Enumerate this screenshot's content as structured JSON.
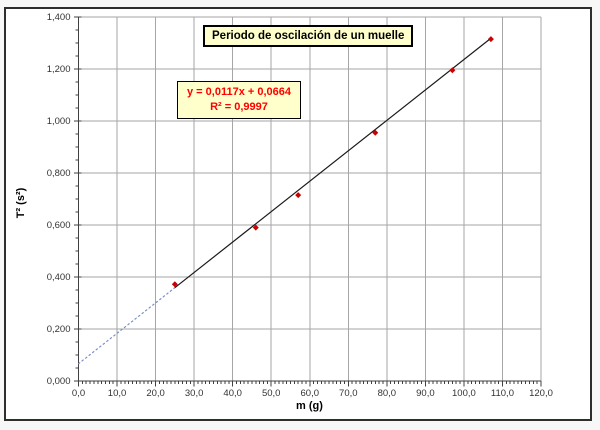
{
  "chart_data": {
    "type": "scatter",
    "title": "Periodo de oscilación de un muelle",
    "xlabel": "m (g)",
    "ylabel": "T² (s²)",
    "xlim": [
      0,
      120
    ],
    "ylim": [
      0,
      1.4
    ],
    "x_major_step": 10,
    "x_minor_step": 1,
    "y_major_step": 0.2,
    "y_minor_step": 0.05,
    "x_tick_labels": [
      "0,0",
      "10,0",
      "20,0",
      "30,0",
      "40,0",
      "50,0",
      "60,0",
      "70,0",
      "80,0",
      "90,0",
      "100,0",
      "110,0",
      "120,0"
    ],
    "y_tick_labels": [
      "0,000",
      "0,200",
      "0,400",
      "0,600",
      "0,800",
      "1,000",
      "1,200",
      "1,400"
    ],
    "grid": true,
    "legend": "none",
    "points": [
      [
        25,
        0.372
      ],
      [
        46,
        0.59
      ],
      [
        57,
        0.715
      ],
      [
        77,
        0.955
      ],
      [
        97,
        1.195
      ],
      [
        107,
        1.315
      ]
    ],
    "trendline": {
      "slope": 0.0117,
      "intercept": 0.0664,
      "equation": "y = 0,0117x + 0,0664",
      "r_squared": "R² = 0,9997",
      "solid_range": [
        25,
        107
      ],
      "dashed_range": [
        0,
        25
      ]
    },
    "colors": {
      "point": "#cc0000",
      "trendline": "#1a1a1a",
      "extrapolation": "#7b8fc7",
      "grid": "#a6a6a6",
      "axis": "#404040",
      "tick_text": "#333333",
      "box_bg": "#ffffcc",
      "box_border": "#000000",
      "equation_text": "#ff0000"
    }
  }
}
